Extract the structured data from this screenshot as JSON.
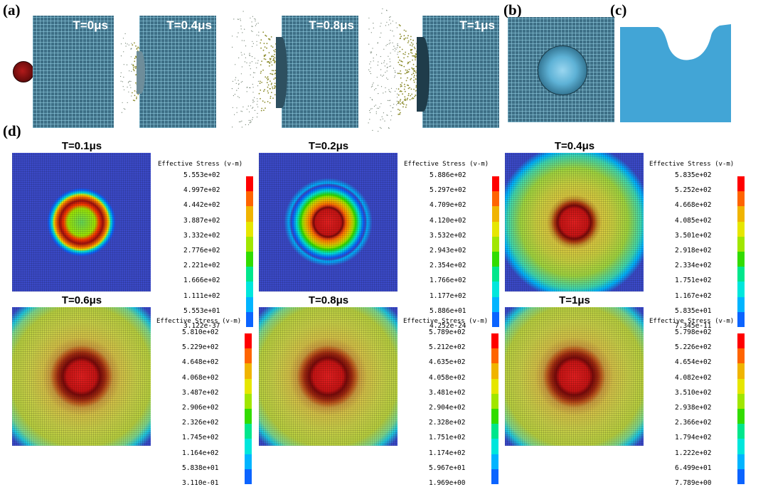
{
  "labels": {
    "a": "(a)",
    "b": "(b)",
    "c": "(c)",
    "d": "(d)"
  },
  "panel_a": {
    "times": [
      "T=0μs",
      "T=0.4μs",
      "T=0.8μs",
      "T=1μs"
    ]
  },
  "colors": {
    "mesh": "#3d6f86",
    "crater_blue": "#42a5d6",
    "background_blue": "#3b4ac8",
    "scale": [
      "#0000ff",
      "#0b64ff",
      "#00b4ff",
      "#00e6dc",
      "#00e68c",
      "#32dc00",
      "#a0e600",
      "#e6e600",
      "#f0b400",
      "#ff6400",
      "#ff0000"
    ]
  },
  "stress_panels": [
    {
      "time": "T=0.1μs",
      "title": "Effective Stress (v-m)",
      "values": [
        "5.553e+02",
        "4.997e+02",
        "4.442e+02",
        "3.887e+02",
        "3.332e+02",
        "2.776e+02",
        "2.221e+02",
        "1.666e+02",
        "1.111e+02",
        "5.553e+01",
        "3.122e-37"
      ]
    },
    {
      "time": "T=0.2μs",
      "title": "Effective Stress (v-m)",
      "values": [
        "5.886e+02",
        "5.297e+02",
        "4.709e+02",
        "4.120e+02",
        "3.532e+02",
        "2.943e+02",
        "2.354e+02",
        "1.766e+02",
        "1.177e+02",
        "5.886e+01",
        "4.252e-24"
      ]
    },
    {
      "time": "T=0.4μs",
      "title": "Effective Stress (v-m)",
      "values": [
        "5.835e+02",
        "5.252e+02",
        "4.668e+02",
        "4.085e+02",
        "3.501e+02",
        "2.918e+02",
        "2.334e+02",
        "1.751e+02",
        "1.167e+02",
        "5.835e+01",
        "7.345e-11"
      ]
    },
    {
      "time": "T=0.6μs",
      "title": "Effective Stress (v-m)",
      "values": [
        "5.810e+02",
        "5.229e+02",
        "4.648e+02",
        "4.068e+02",
        "3.487e+02",
        "2.906e+02",
        "2.326e+02",
        "1.745e+02",
        "1.164e+02",
        "5.838e+01",
        "3.110e-01"
      ]
    },
    {
      "time": "T=0.8μs",
      "title": "Effective Stress (v-m)",
      "values": [
        "5.789e+02",
        "5.212e+02",
        "4.635e+02",
        "4.058e+02",
        "3.481e+02",
        "2.904e+02",
        "2.328e+02",
        "1.751e+02",
        "1.174e+02",
        "5.967e+01",
        "1.969e+00"
      ]
    },
    {
      "time": "T=1μs",
      "title": "Effective Stress (v-m)",
      "values": [
        "5.798e+02",
        "5.226e+02",
        "4.654e+02",
        "4.082e+02",
        "3.510e+02",
        "2.938e+02",
        "2.366e+02",
        "1.794e+02",
        "1.222e+02",
        "6.499e+01",
        "7.789e+00"
      ]
    }
  ]
}
